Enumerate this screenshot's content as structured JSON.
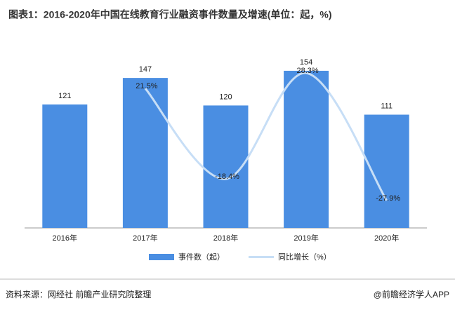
{
  "chart_data": {
    "type": "bar_line",
    "title": "图表1：2016-2020年中国在线教育行业融资事件数量及增速(单位：起，%)",
    "categories": [
      "2016年",
      "2017年",
      "2018年",
      "2019年",
      "2020年"
    ],
    "series": [
      {
        "name": "事件数（起）",
        "color": "#4a8ee2",
        "type": "bar",
        "values": [
          121,
          147,
          120,
          154,
          111
        ]
      },
      {
        "name": "同比增长（%）",
        "color": "#c7def6",
        "type": "line",
        "axis": "y2",
        "values": [
          null,
          21.5,
          -18.4,
          28.3,
          -27.9
        ],
        "value_labels": [
          null,
          "21.5%",
          "-18.4%",
          "28.3%",
          "-27.9%"
        ]
      }
    ],
    "ylim": [
      0,
      200
    ],
    "y2lim": [
      -40,
      50
    ],
    "legend": "bottom"
  },
  "source": "资料来源：网经社 前瞻产业研究院整理",
  "credit": "@前瞻经济学人APP"
}
